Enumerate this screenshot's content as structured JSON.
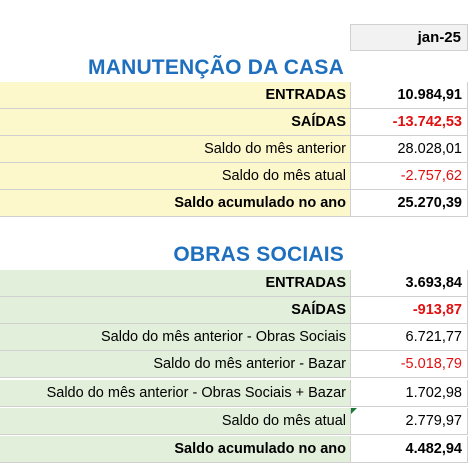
{
  "header": {
    "month": "jan-25"
  },
  "sections": [
    {
      "title": "MANUTENÇÃO DA CASA",
      "rows": [
        {
          "label": "ENTRADAS",
          "value": "10.984,91"
        },
        {
          "label": "SAÍDAS",
          "value": "-13.742,53"
        },
        {
          "label": "Saldo do mês anterior",
          "value": "28.028,01"
        },
        {
          "label": "Saldo do mês atual",
          "value": "-2.757,62"
        },
        {
          "label": "Saldo acumulado no ano",
          "value": "25.270,39"
        }
      ]
    },
    {
      "title": "OBRAS SOCIAIS",
      "rows": [
        {
          "label": "ENTRADAS",
          "value": "3.693,84"
        },
        {
          "label": "SAÍDAS",
          "value": "-913,87"
        },
        {
          "label": "Saldo do mês anterior - Obras  Sociais",
          "value": "6.721,77"
        },
        {
          "label": "Saldo do mês anterior - Bazar",
          "value": "-5.018,79"
        },
        {
          "label": "Saldo do mês anterior - Obras Sociais + Bazar",
          "value": "1.702,98"
        },
        {
          "label": "Saldo do mês atual",
          "value": "2.779,97"
        },
        {
          "label": "Saldo acumulado no ano",
          "value": "4.482,94"
        }
      ]
    }
  ],
  "colors": {
    "title": "#1f6fbf",
    "negative": "#e01010",
    "section_a_fill": "#fdf7cc",
    "section_b_fill": "#e2efda"
  }
}
